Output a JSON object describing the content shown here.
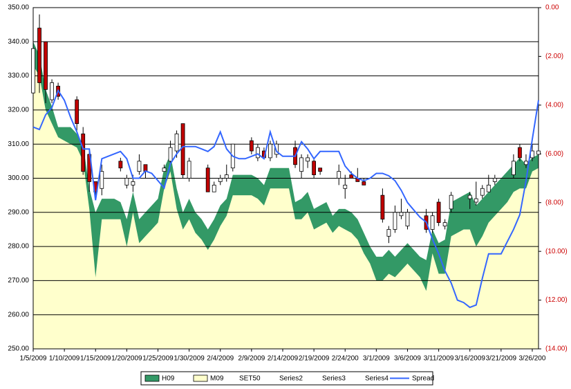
{
  "chart_data": {
    "type": "combo",
    "categories": [
      "1/5/2009",
      null,
      null,
      null,
      null,
      "1/10/2009",
      null,
      null,
      null,
      null,
      "1/15/2009",
      null,
      null,
      null,
      null,
      "1/20/2009",
      null,
      null,
      null,
      null,
      "1/25/2009",
      null,
      null,
      null,
      null,
      "1/30/2009",
      null,
      null,
      null,
      null,
      "2/4/2009",
      null,
      null,
      null,
      null,
      "2/9/2009",
      null,
      null,
      null,
      null,
      "2/14/2009",
      null,
      null,
      null,
      null,
      "2/19/2009",
      null,
      null,
      null,
      null,
      "2/24/200",
      null,
      null,
      null,
      null,
      "3/1/2009",
      null,
      null,
      null,
      null,
      "3/6/2009",
      null,
      null,
      null,
      null,
      "3/11/2009",
      null,
      null,
      null,
      null,
      "3/16/2009",
      null,
      null,
      null,
      null,
      "3/21/2009",
      null,
      null,
      null,
      null,
      "3/26/200",
      null
    ],
    "ylim": [
      250,
      350
    ],
    "yticks": [
      {
        "value": 250,
        "label": "250.00"
      },
      {
        "value": 260,
        "label": "260.00"
      },
      {
        "value": 270,
        "label": "270.00"
      },
      {
        "value": 280,
        "label": "280.00"
      },
      {
        "value": 290,
        "label": "290.00"
      },
      {
        "value": 300,
        "label": "300.00"
      },
      {
        "value": 310,
        "label": "310.00"
      },
      {
        "value": 320,
        "label": "320.00"
      },
      {
        "value": 330,
        "label": "330.00"
      },
      {
        "value": 340,
        "label": "340.00"
      },
      {
        "value": 350,
        "label": "350.00"
      }
    ],
    "y2lim": [
      -14,
      0
    ],
    "y2ticks": [
      {
        "value": 0,
        "label": "0.00"
      },
      {
        "value": -2,
        "label": "(2.00)"
      },
      {
        "value": -4,
        "label": "(4.00)"
      },
      {
        "value": -6,
        "label": "(6.00)"
      },
      {
        "value": -8,
        "label": "(8.00)"
      },
      {
        "value": -10,
        "label": "(10.00)"
      },
      {
        "value": -12,
        "label": "(12.00)"
      },
      {
        "value": -14,
        "label": "(14.00)"
      }
    ],
    "grid": true,
    "legend": "bottom",
    "series": [
      {
        "name": "H09",
        "type": "area",
        "color": "#339966",
        "values": [
          340,
          336,
          326,
          321,
          315,
          315,
          315,
          313,
          310,
          297,
          290,
          294,
          294,
          294,
          293,
          288,
          296,
          288,
          290,
          292,
          294,
          303,
          307,
          297,
          290,
          294,
          290,
          288,
          285,
          288,
          292,
          294,
          301,
          301,
          301,
          301,
          300,
          298,
          303,
          303,
          303,
          303,
          293,
          294,
          296,
          291,
          292,
          293,
          289,
          291,
          291,
          290,
          288,
          284,
          280,
          277,
          277,
          279,
          277,
          279,
          281,
          279,
          277,
          276,
          285,
          281,
          282,
          293,
          294,
          295,
          296,
          292,
          294,
          296,
          298,
          300,
          302,
          304,
          306,
          304,
          306,
          307
        ]
      },
      {
        "name": "M09",
        "type": "area",
        "color": "#ffffcc",
        "values": [
          333,
          330,
          320,
          316,
          312,
          311,
          310,
          309,
          305,
          291,
          271,
          288,
          288,
          288,
          288,
          280,
          290,
          281,
          283,
          285,
          287,
          297,
          302,
          291,
          285,
          288,
          284,
          282,
          279,
          282,
          286,
          289,
          295,
          295,
          295,
          295,
          294,
          292,
          297,
          297,
          297,
          297,
          288,
          288,
          290,
          285,
          286,
          287,
          284,
          286,
          285,
          284,
          282,
          278,
          275,
          270,
          270,
          272,
          271,
          273,
          275,
          273,
          271,
          267,
          278,
          272,
          272,
          283,
          284,
          285,
          285,
          280,
          283,
          287,
          289,
          291,
          293,
          296,
          297,
          297,
          302,
          303
        ]
      },
      {
        "name": "SET50",
        "type": "candlestick",
        "values": [
          325,
          344,
          340,
          323,
          327,
          null,
          null,
          323,
          313,
          307,
          299,
          297,
          null,
          null,
          305,
          298,
          298,
          302,
          304,
          null,
          null,
          302,
          305,
          308,
          316,
          300,
          null,
          null,
          303,
          296,
          299,
          300,
          303,
          null,
          null,
          311,
          306,
          308,
          306,
          307,
          null,
          null,
          309,
          302,
          305,
          305,
          303,
          null,
          null,
          300,
          297,
          301,
          300,
          299,
          null,
          null,
          295,
          283,
          285,
          289,
          286,
          null,
          null,
          289,
          285,
          293,
          286,
          291,
          null,
          null,
          294,
          293,
          295,
          296,
          299,
          null,
          null,
          301,
          309,
          304,
          306,
          307
        ]
      },
      {
        "name": "Series2",
        "type": "candlestick",
        "values": [
          340,
          348,
          340,
          329,
          328,
          null,
          null,
          324,
          315,
          308,
          299,
          304,
          null,
          null,
          306,
          301,
          301,
          307,
          304,
          null,
          null,
          304,
          311,
          314,
          316,
          306,
          null,
          null,
          304,
          299,
          301,
          304,
          310,
          null,
          null,
          312,
          310,
          309,
          311,
          311,
          null,
          null,
          311,
          307,
          307,
          306,
          303,
          null,
          null,
          304,
          301,
          302,
          303,
          300,
          null,
          null,
          297,
          286,
          292,
          294,
          291,
          null,
          null,
          291,
          290,
          294,
          288,
          296,
          null,
          null,
          296,
          299,
          298,
          301,
          301,
          null,
          null,
          307,
          310,
          307,
          310,
          309
        ]
      },
      {
        "name": "Series3",
        "type": "candlestick",
        "values": [
          325,
          325,
          322,
          322,
          323,
          null,
          null,
          314,
          301,
          296,
          294,
          295,
          null,
          null,
          302,
          297,
          296,
          301,
          300,
          null,
          null,
          302,
          304,
          306,
          300,
          299,
          null,
          null,
          296,
          296,
          298,
          299,
          302,
          null,
          null,
          307,
          305,
          306,
          305,
          306,
          null,
          null,
          303,
          300,
          303,
          300,
          301,
          null,
          null,
          298,
          294,
          300,
          299,
          298,
          null,
          null,
          287,
          281,
          284,
          288,
          285,
          null,
          null,
          284,
          284,
          286,
          285,
          290,
          null,
          null,
          291,
          292,
          294,
          296,
          298,
          null,
          null,
          300,
          305,
          303,
          305,
          307
        ]
      },
      {
        "name": "Series4",
        "type": "candlestick",
        "values": [
          338,
          328,
          326,
          328,
          324,
          null,
          null,
          316,
          302,
          299,
          296,
          302,
          null,
          null,
          303,
          300,
          299,
          305,
          302,
          null,
          null,
          303,
          309,
          313,
          301,
          305,
          null,
          null,
          296,
          298,
          300,
          301,
          310,
          null,
          null,
          308,
          309,
          306,
          310,
          310,
          null,
          null,
          304,
          306,
          306,
          301,
          302,
          null,
          null,
          302,
          298,
          300,
          299,
          298,
          null,
          null,
          288,
          285,
          290,
          290,
          290,
          null,
          null,
          285,
          289,
          287,
          287,
          295,
          null,
          null,
          295,
          294,
          297,
          298,
          300,
          null,
          null,
          305,
          306,
          305,
          308,
          308
        ]
      },
      {
        "name": "Spread",
        "type": "line",
        "axis": "y2",
        "color": "#3366ff",
        "values": [
          -4.9,
          -5.0,
          -4.4,
          -4.1,
          -3.4,
          -3.8,
          -4.5,
          -5.1,
          -5.8,
          -5.8,
          -7.9,
          -6.2,
          -6.1,
          -6.0,
          -5.9,
          -6.2,
          -7.0,
          -7.0,
          -6.7,
          -6.8,
          -7.1,
          -7.4,
          -6.4,
          -6.0,
          -5.7,
          -5.7,
          -5.7,
          -5.8,
          -5.9,
          -5.7,
          -5.1,
          -5.8,
          -6.1,
          -6.2,
          -6.2,
          -6.1,
          -6.0,
          -6.2,
          -5.1,
          -5.9,
          -6.1,
          -6.1,
          -6.1,
          -5.5,
          -5.8,
          -6.2,
          -5.9,
          -5.9,
          -5.9,
          -5.9,
          -6.5,
          -6.8,
          -7.0,
          -7.1,
          -7.0,
          -6.8,
          -6.8,
          -6.9,
          -7.1,
          -7.5,
          -8.0,
          -8.3,
          -8.6,
          -8.8,
          -9.5,
          -10.1,
          -10.8,
          -11.3,
          -12.0,
          -12.1,
          -12.3,
          -12.2,
          -11.1,
          -10.1,
          -10.1,
          -10.1,
          -9.6,
          -9.1,
          -8.5,
          -7.1,
          -5.4,
          -3.8
        ]
      }
    ]
  }
}
